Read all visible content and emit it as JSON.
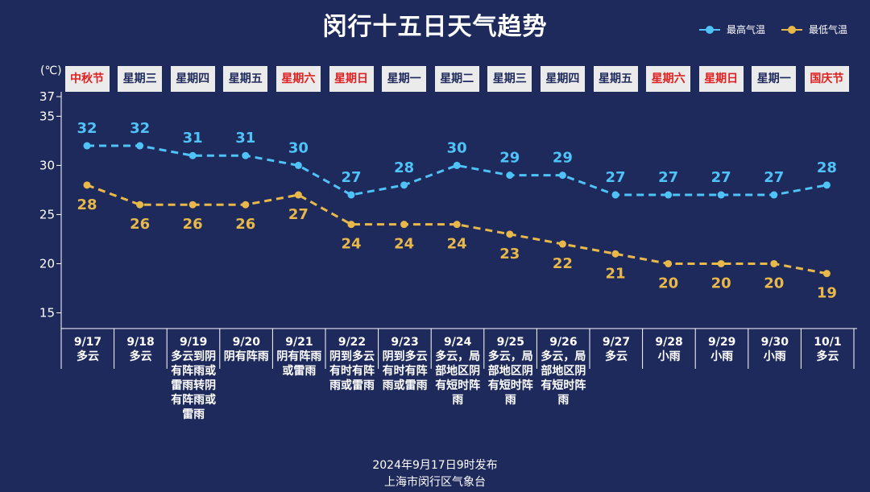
{
  "title": "闵行十五日天气趋势",
  "unit": "(℃)",
  "legend": {
    "high": "最高气温",
    "low": "最低气温"
  },
  "colors": {
    "high": "#4fc3f7",
    "low": "#e8b84a",
    "background": "#1f2a5c",
    "holiday": "#e02020"
  },
  "chart_data": {
    "type": "line",
    "categories": [
      "9/17",
      "9/18",
      "9/19",
      "9/20",
      "9/21",
      "9/22",
      "9/23",
      "9/24",
      "9/25",
      "9/26",
      "9/27",
      "9/28",
      "9/29",
      "9/30",
      "10/1"
    ],
    "days": [
      "中秋节",
      "星期三",
      "星期四",
      "星期五",
      "星期六",
      "星期日",
      "星期一",
      "星期二",
      "星期三",
      "星期四",
      "星期五",
      "星期六",
      "星期日",
      "星期一",
      "国庆节"
    ],
    "red_days": [
      true,
      false,
      false,
      false,
      true,
      true,
      false,
      false,
      false,
      false,
      false,
      true,
      true,
      false,
      true
    ],
    "weather": [
      "多云",
      "多云",
      "多云到阴有阵雨或雷雨转阴有阵雨或雷雨",
      "阴有阵雨",
      "阴有阵雨或雷雨",
      "阴到多云有时有阵雨或雷雨",
      "阴到多云有时有阵雨或雷雨",
      "多云，局部地区阴有短时阵雨",
      "多云，局部地区阴有短时阵雨",
      "多云，局部地区阴有短时阵雨",
      "多云",
      "小雨",
      "小雨",
      "小雨",
      "多云"
    ],
    "series": [
      {
        "name": "最高气温",
        "values": [
          32,
          32,
          31,
          31,
          30,
          27,
          28,
          30,
          29,
          29,
          27,
          27,
          27,
          27,
          28
        ]
      },
      {
        "name": "最低气温",
        "values": [
          28,
          26,
          26,
          26,
          27,
          24,
          24,
          24,
          23,
          22,
          21,
          20,
          20,
          20,
          19
        ]
      }
    ],
    "yticks": [
      15,
      20,
      25,
      30,
      35,
      37
    ],
    "ylim": [
      13.4,
      37
    ]
  },
  "footer": {
    "publish": "2024年9月17日9时发布",
    "agency": "上海市闵行区气象台"
  }
}
